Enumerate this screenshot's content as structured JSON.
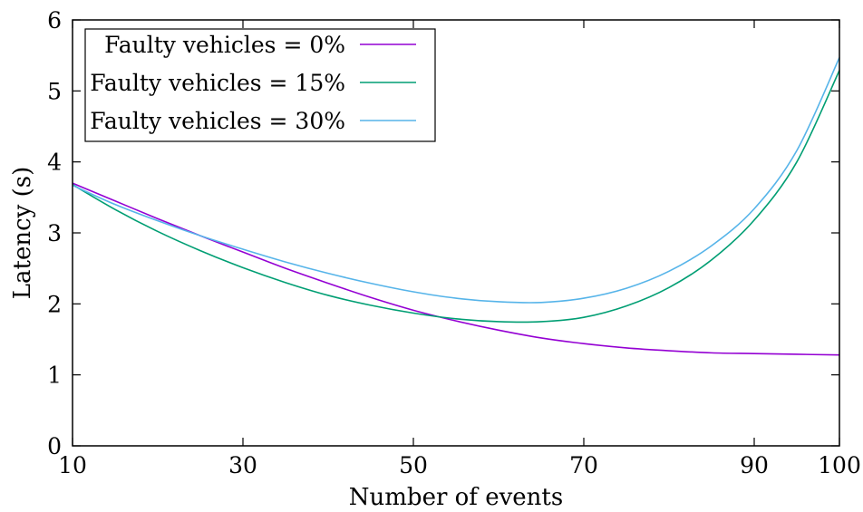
{
  "chart_data": {
    "type": "line",
    "xlabel": "Number of events",
    "ylabel": "Latency (s)",
    "xlim": [
      10,
      100
    ],
    "ylim": [
      0,
      6
    ],
    "xticks": [
      10,
      30,
      50,
      70,
      90,
      100
    ],
    "yticks": [
      0,
      1,
      2,
      3,
      4,
      5,
      6
    ],
    "grid": false,
    "legend_position": "top-left",
    "series": [
      {
        "name": "Faulty vehicles = 0%",
        "color": "#9400d3",
        "x": [
          10,
          15,
          20,
          25,
          30,
          35,
          40,
          45,
          50,
          55,
          60,
          65,
          70,
          75,
          80,
          85,
          90,
          95,
          100
        ],
        "y": [
          3.7,
          3.45,
          3.2,
          2.96,
          2.73,
          2.5,
          2.29,
          2.09,
          1.91,
          1.76,
          1.63,
          1.52,
          1.44,
          1.38,
          1.34,
          1.31,
          1.3,
          1.29,
          1.28
        ]
      },
      {
        "name": "Faulty vehicles = 15%",
        "color": "#009e73",
        "x": [
          10,
          15,
          20,
          25,
          30,
          35,
          40,
          45,
          50,
          55,
          60,
          65,
          70,
          75,
          80,
          85,
          90,
          95,
          100
        ],
        "y": [
          3.68,
          3.33,
          3.02,
          2.75,
          2.51,
          2.3,
          2.12,
          1.98,
          1.87,
          1.79,
          1.75,
          1.75,
          1.81,
          1.97,
          2.23,
          2.62,
          3.18,
          4.0,
          5.29
        ]
      },
      {
        "name": "Faulty vehicles = 30%",
        "color": "#56b4e9",
        "x": [
          10,
          15,
          20,
          25,
          30,
          35,
          40,
          45,
          50,
          55,
          60,
          65,
          70,
          75,
          80,
          85,
          90,
          95,
          100
        ],
        "y": [
          3.67,
          3.4,
          3.17,
          2.96,
          2.77,
          2.59,
          2.43,
          2.29,
          2.17,
          2.08,
          2.03,
          2.02,
          2.08,
          2.22,
          2.46,
          2.82,
          3.34,
          4.16,
          5.47
        ]
      }
    ]
  }
}
